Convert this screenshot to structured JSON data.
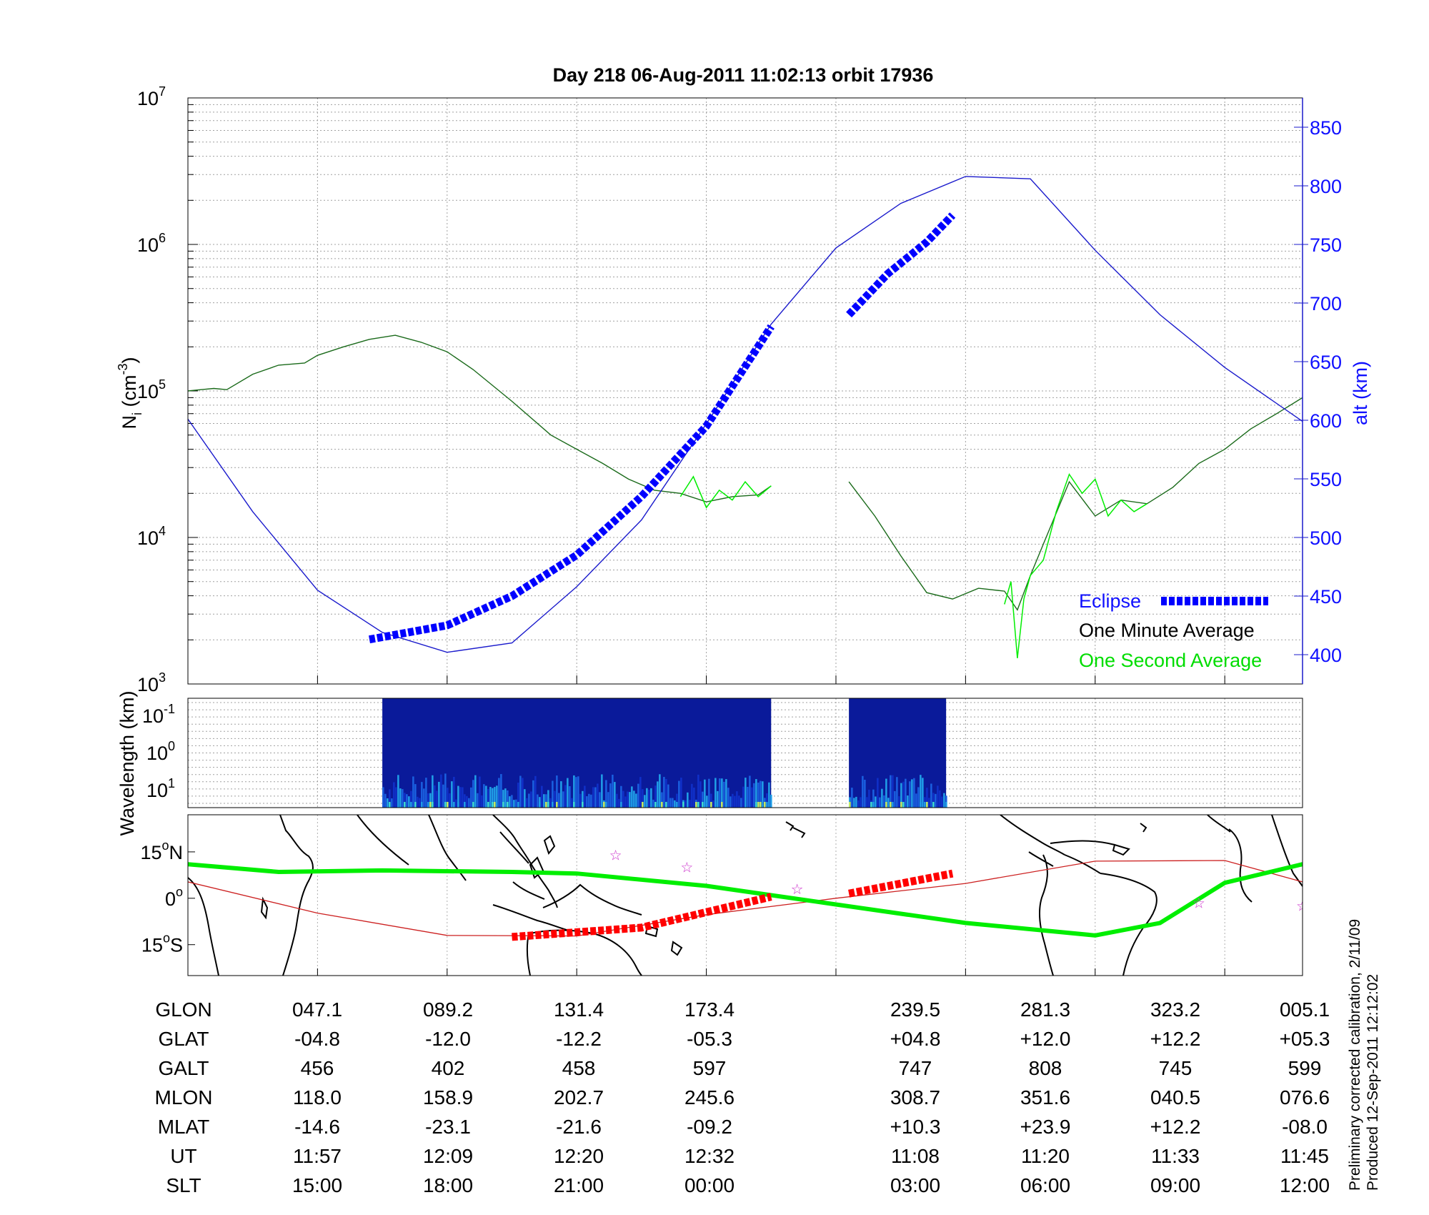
{
  "chart_data": [
    {
      "type": "line",
      "title": "Day 218  06-Aug-2011 11:02:13   orbit 17936",
      "ylabel": "N_i (cm^-3)",
      "ylabel_main": "N",
      "ylabel_sub": "i",
      "ylabel_unit": "(cm",
      "ylabel_exp": "-3",
      "ylabel_close": ")",
      "y_scale": "log",
      "ylim": [
        1000,
        10000000
      ],
      "y_ticks": [
        {
          "value": 1000,
          "base": "10",
          "exp": "3"
        },
        {
          "value": 10000,
          "base": "10",
          "exp": "4"
        },
        {
          "value": 100000,
          "base": "10",
          "exp": "5"
        },
        {
          "value": 1000000,
          "base": "10",
          "exp": "6"
        },
        {
          "value": 10000000,
          "base": "10",
          "exp": "7"
        }
      ],
      "y2label": "alt (km)",
      "y2lim": [
        375,
        875
      ],
      "y2_ticks": [
        "400",
        "450",
        "500",
        "550",
        "600",
        "650",
        "700",
        "750",
        "800",
        "850"
      ],
      "x_categories": [
        "047.1",
        "089.2",
        "131.4",
        "173.4",
        "239.5",
        "281.3",
        "323.2",
        "005.1"
      ],
      "grid": true,
      "legend_position": "bottom-right",
      "legend": [
        {
          "label": "Eclipse",
          "color": "#0000ff",
          "style": "dashed-thick"
        },
        {
          "label": "One Minute Average",
          "color": "#000000",
          "style": "line"
        },
        {
          "label": "One Second Average",
          "color": "#00ee00",
          "style": "line"
        }
      ],
      "series": [
        {
          "name": "One Minute Average",
          "color": "#1a6a1a",
          "segments": [
            {
              "x": [
                0,
                0.1,
                0.2,
                0.3,
                0.5,
                0.7,
                0.9,
                1.0,
                1.2,
                1.4,
                1.6,
                1.8,
                2.0,
                2.2,
                2.5,
                2.8,
                3.0,
                3.2,
                3.4,
                3.6,
                3.8,
                4.0,
                4.2,
                4.4,
                4.5
              ],
              "y": [
                100000,
                102000,
                104000,
                102000,
                130000,
                150000,
                155000,
                175000,
                200000,
                225000,
                240000,
                215000,
                185000,
                140000,
                85000,
                50000,
                40000,
                32000,
                25000,
                21000,
                20000,
                17500,
                19000,
                19500,
                22500
              ]
            },
            {
              "x": [
                5.1,
                5.3,
                5.5,
                5.7,
                5.9,
                6.1,
                6.3,
                6.4,
                6.5,
                6.6,
                6.8,
                7.0,
                7.2,
                7.4,
                7.6,
                7.8,
                8.0,
                8.2,
                8.4,
                8.6
              ],
              "y": [
                24000,
                14000,
                7500,
                4200,
                3800,
                4500,
                4300,
                3200,
                5500,
                9000,
                24000,
                14000,
                18000,
                17000,
                22000,
                32000,
                40000,
                55000,
                70000,
                90000
              ]
            }
          ]
        },
        {
          "name": "One Second Average",
          "color": "#00ee00",
          "segments": [
            {
              "x": [
                3.8,
                3.9,
                4.0,
                4.1,
                4.2,
                4.3,
                4.4,
                4.5
              ],
              "y": [
                19000,
                26000,
                16000,
                21000,
                18000,
                24000,
                19000,
                22500
              ]
            },
            {
              "x": [
                6.3,
                6.35,
                6.4,
                6.45,
                6.5,
                6.6,
                6.7,
                6.8,
                6.9,
                7.0,
                7.1,
                7.2,
                7.3,
                7.4
              ],
              "y": [
                3500,
                5000,
                1500,
                3800,
                5500,
                7000,
                15000,
                27000,
                20000,
                25000,
                14000,
                18000,
                15000,
                17000
              ]
            }
          ]
        },
        {
          "name": "alt (km)",
          "axis": "right",
          "color": "#1a1acc",
          "x": [
            0,
            0.5,
            1.0,
            1.5,
            2.0,
            2.5,
            3.0,
            3.5,
            4.0,
            4.5,
            5.0,
            5.5,
            6.0,
            6.5,
            7.0,
            7.5,
            8.0,
            8.6
          ],
          "y": [
            601,
            522,
            455,
            419,
            402,
            410,
            458,
            515,
            597,
            682,
            747,
            785,
            808,
            806,
            745,
            690,
            645,
            599
          ]
        },
        {
          "name": "Eclipse",
          "axis": "right",
          "color": "#0000ff",
          "segments": [
            {
              "x": [
                1.4,
                2.0,
                2.5,
                3.0,
                3.5,
                4.0,
                4.5
              ],
              "y": [
                413,
                425,
                450,
                485,
                535,
                595,
                680
              ]
            },
            {
              "x": [
                5.1,
                5.4,
                5.7,
                5.9
              ],
              "y": [
                690,
                725,
                752,
                775
              ]
            }
          ]
        }
      ]
    },
    {
      "type": "heatmap",
      "ylabel": "Wavelength (km)",
      "y_ticks": [
        {
          "base": "10",
          "exp": "-1"
        },
        {
          "base": "10",
          "exp": "0"
        },
        {
          "base": "10",
          "exp": "1"
        }
      ],
      "data_blocks": [
        {
          "x_start": 1.5,
          "x_end": 4.5
        },
        {
          "x_start": 5.1,
          "x_end": 5.85
        }
      ],
      "colors": [
        "#0a1a9a",
        "#1030c8",
        "#1a60e0",
        "#20a0e8",
        "#40e0d0",
        "#c8f060"
      ]
    },
    {
      "type": "map",
      "y_ticks": [
        {
          "value": 15,
          "label": "15",
          "hemi": "N"
        },
        {
          "value": 0,
          "label": "0",
          "hemi": ""
        },
        {
          "value": -15,
          "label": "15",
          "hemi": "S"
        }
      ],
      "ylim": [
        -25,
        27
      ],
      "series": [
        {
          "name": "orbit track",
          "color": "#cc2020",
          "x": [
            0,
            1.0,
            2.0,
            3.0,
            4.0,
            5.0,
            6.0,
            7.0,
            8.0,
            8.6
          ],
          "y": [
            5.3,
            -4.8,
            -12.0,
            -12.2,
            -5.3,
            0.0,
            4.8,
            12.0,
            12.2,
            5.3
          ]
        },
        {
          "name": "magnetic equator",
          "color": "#00ee00",
          "x": [
            0,
            0.7,
            1.5,
            2.5,
            3.0,
            4.0,
            5.0,
            6.0,
            7.0,
            7.5,
            8.0,
            8.6
          ],
          "y": [
            11,
            8.5,
            9,
            8.5,
            8,
            4,
            -2,
            -8,
            -12,
            -8,
            5,
            11
          ]
        },
        {
          "name": "eclipse track",
          "color": "#ff0000",
          "segments": [
            {
              "x": [
                2.5,
                3.5,
                4.5
              ],
              "y": [
                -12.5,
                -9.5,
                0.5
              ]
            },
            {
              "x": [
                5.1,
                5.9
              ],
              "y": [
                1.5,
                8
              ]
            }
          ]
        }
      ],
      "markers": [
        {
          "x": 3.3,
          "y": 14,
          "color": "#cc33cc"
        },
        {
          "x": 3.85,
          "y": 10,
          "color": "#cc33cc"
        },
        {
          "x": 4.7,
          "y": 3,
          "color": "#cc33cc"
        },
        {
          "x": 7.8,
          "y": -1.5,
          "color": "#cc33cc"
        },
        {
          "x": 8.6,
          "y": -2.5,
          "color": "#cc33cc"
        }
      ]
    }
  ],
  "table": {
    "rows": [
      {
        "label": "GLON",
        "values": [
          "047.1",
          "089.2",
          "131.4",
          "173.4",
          "239.5",
          "281.3",
          "323.2",
          "005.1"
        ]
      },
      {
        "label": "GLAT",
        "values": [
          "-04.8",
          "-12.0",
          "-12.2",
          "-05.3",
          "+04.8",
          "+12.0",
          "+12.2",
          "+05.3"
        ]
      },
      {
        "label": "GALT",
        "values": [
          "456",
          "402",
          "458",
          "597",
          "747",
          "808",
          "745",
          "599"
        ]
      },
      {
        "label": "MLON",
        "values": [
          "118.0",
          "158.9",
          "202.7",
          "245.6",
          "308.7",
          "351.6",
          "040.5",
          "076.6"
        ]
      },
      {
        "label": "MLAT",
        "values": [
          "-14.6",
          "-23.1",
          "-21.6",
          "-09.2",
          "+10.3",
          "+23.9",
          "+12.2",
          "-08.0"
        ]
      },
      {
        "label": "UT",
        "values": [
          "11:57",
          "12:09",
          "12:20",
          "12:32",
          "11:08",
          "11:20",
          "11:33",
          "11:45"
        ]
      },
      {
        "label": "SLT",
        "values": [
          "15:00",
          "18:00",
          "21:00",
          "00:00",
          "03:00",
          "06:00",
          "09:00",
          "12:00"
        ]
      }
    ]
  },
  "notes": {
    "line1": "Preliminary corrected calibration, 2/11/09",
    "line2": "Produced 12-Sep-2011 12:12:02"
  }
}
